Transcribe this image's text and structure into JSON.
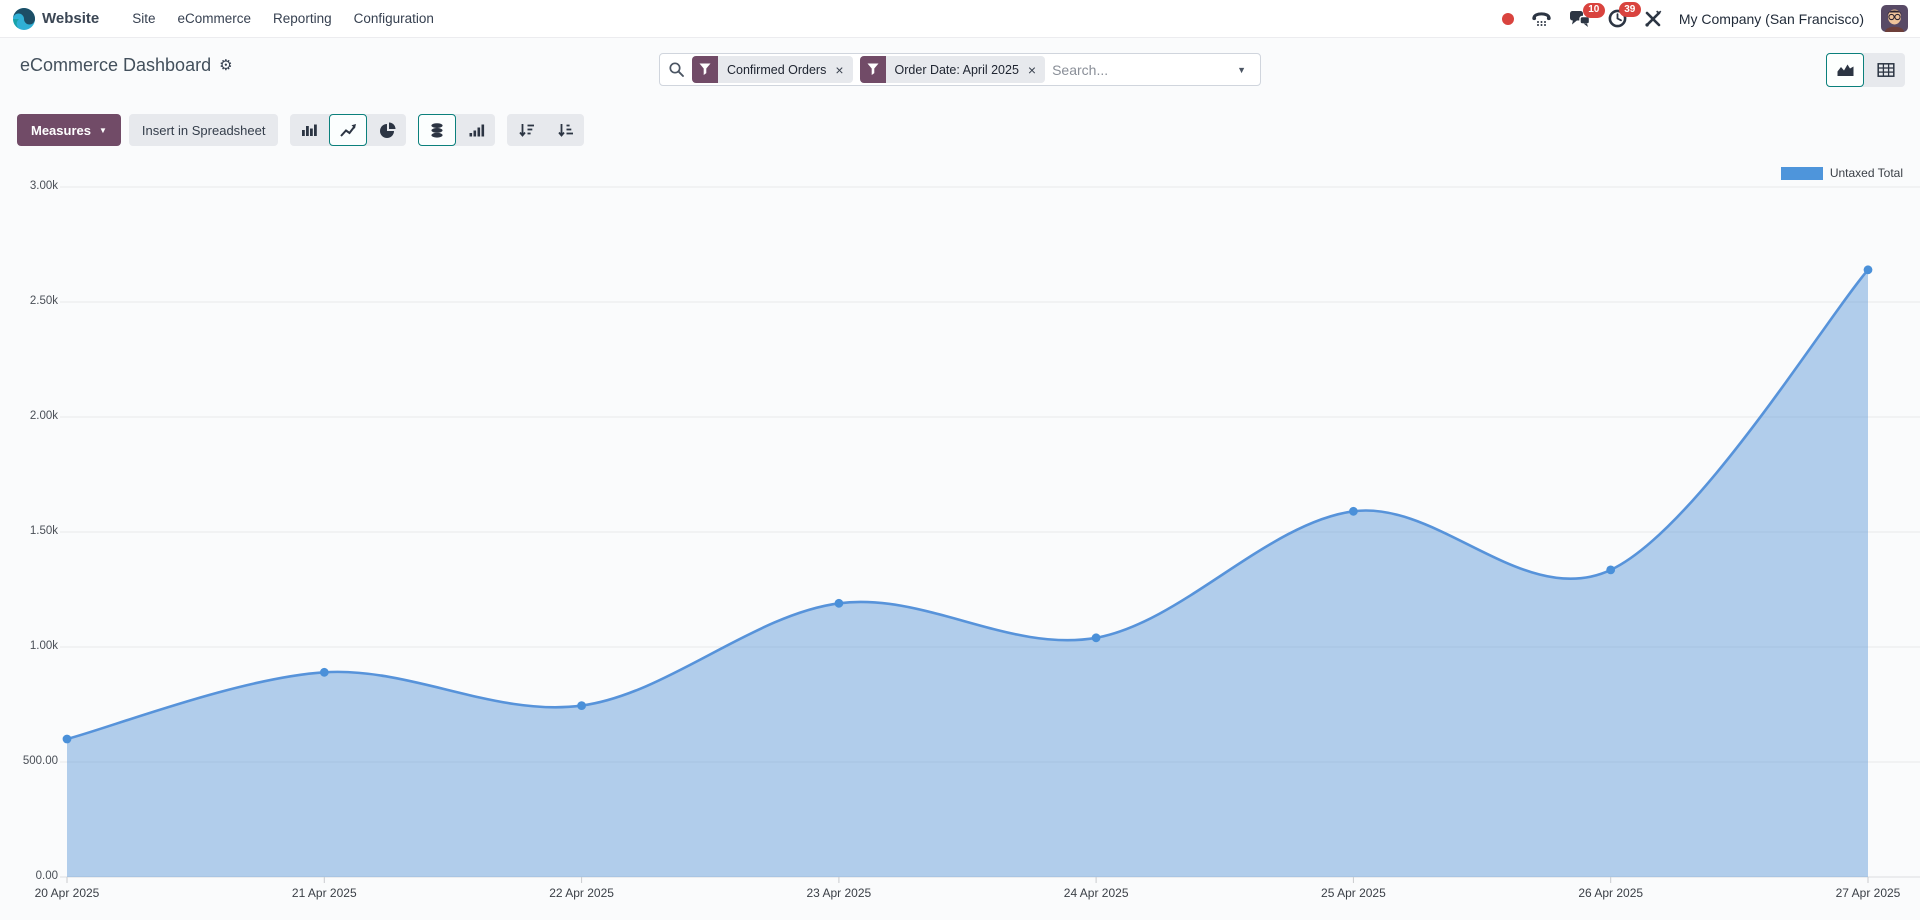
{
  "theme": {
    "accent_purple": "#714B67",
    "active_teal": "#0b807c",
    "danger_red": "#d9433e"
  },
  "nav": {
    "app_name": "Website",
    "menus": [
      {
        "label": "Site"
      },
      {
        "label": "eCommerce"
      },
      {
        "label": "Reporting"
      },
      {
        "label": "Configuration"
      }
    ],
    "systray": {
      "messages_count": "10",
      "activities_count": "39",
      "company": "My Company (San Francisco)"
    }
  },
  "control_panel": {
    "title": "eCommerce Dashboard",
    "search": {
      "placeholder": "Search...",
      "facets": [
        {
          "label": "Confirmed Orders"
        },
        {
          "label": "Order Date: April 2025"
        }
      ]
    }
  },
  "toolbar": {
    "measures_label": "Measures",
    "insert_spreadsheet_label": "Insert in Spreadsheet"
  },
  "chart_data": {
    "type": "area",
    "title": "",
    "xlabel": "",
    "ylabel": "",
    "x": [
      "20 Apr 2025",
      "21 Apr 2025",
      "22 Apr 2025",
      "23 Apr 2025",
      "24 Apr 2025",
      "25 Apr 2025",
      "26 Apr 2025",
      "27 Apr 2025"
    ],
    "series": [
      {
        "name": "Untaxed Total",
        "values": [
          600,
          890,
          745,
          1190,
          1040,
          1590,
          1335,
          2640
        ]
      }
    ],
    "ylim": [
      0,
      3000
    ],
    "yticks": [
      {
        "value": 0,
        "label": "0.00"
      },
      {
        "value": 500,
        "label": "500.00"
      },
      {
        "value": 1000,
        "label": "1.00k"
      },
      {
        "value": 1500,
        "label": "1.50k"
      },
      {
        "value": 2000,
        "label": "2.00k"
      },
      {
        "value": 2500,
        "label": "2.50k"
      },
      {
        "value": 3000,
        "label": "3.00k"
      }
    ],
    "grid": true,
    "legend_position": "top-right",
    "colors": {
      "line": "#5793da",
      "fill": "rgba(88,148,216,0.45)",
      "point": "#4a90d9"
    }
  }
}
